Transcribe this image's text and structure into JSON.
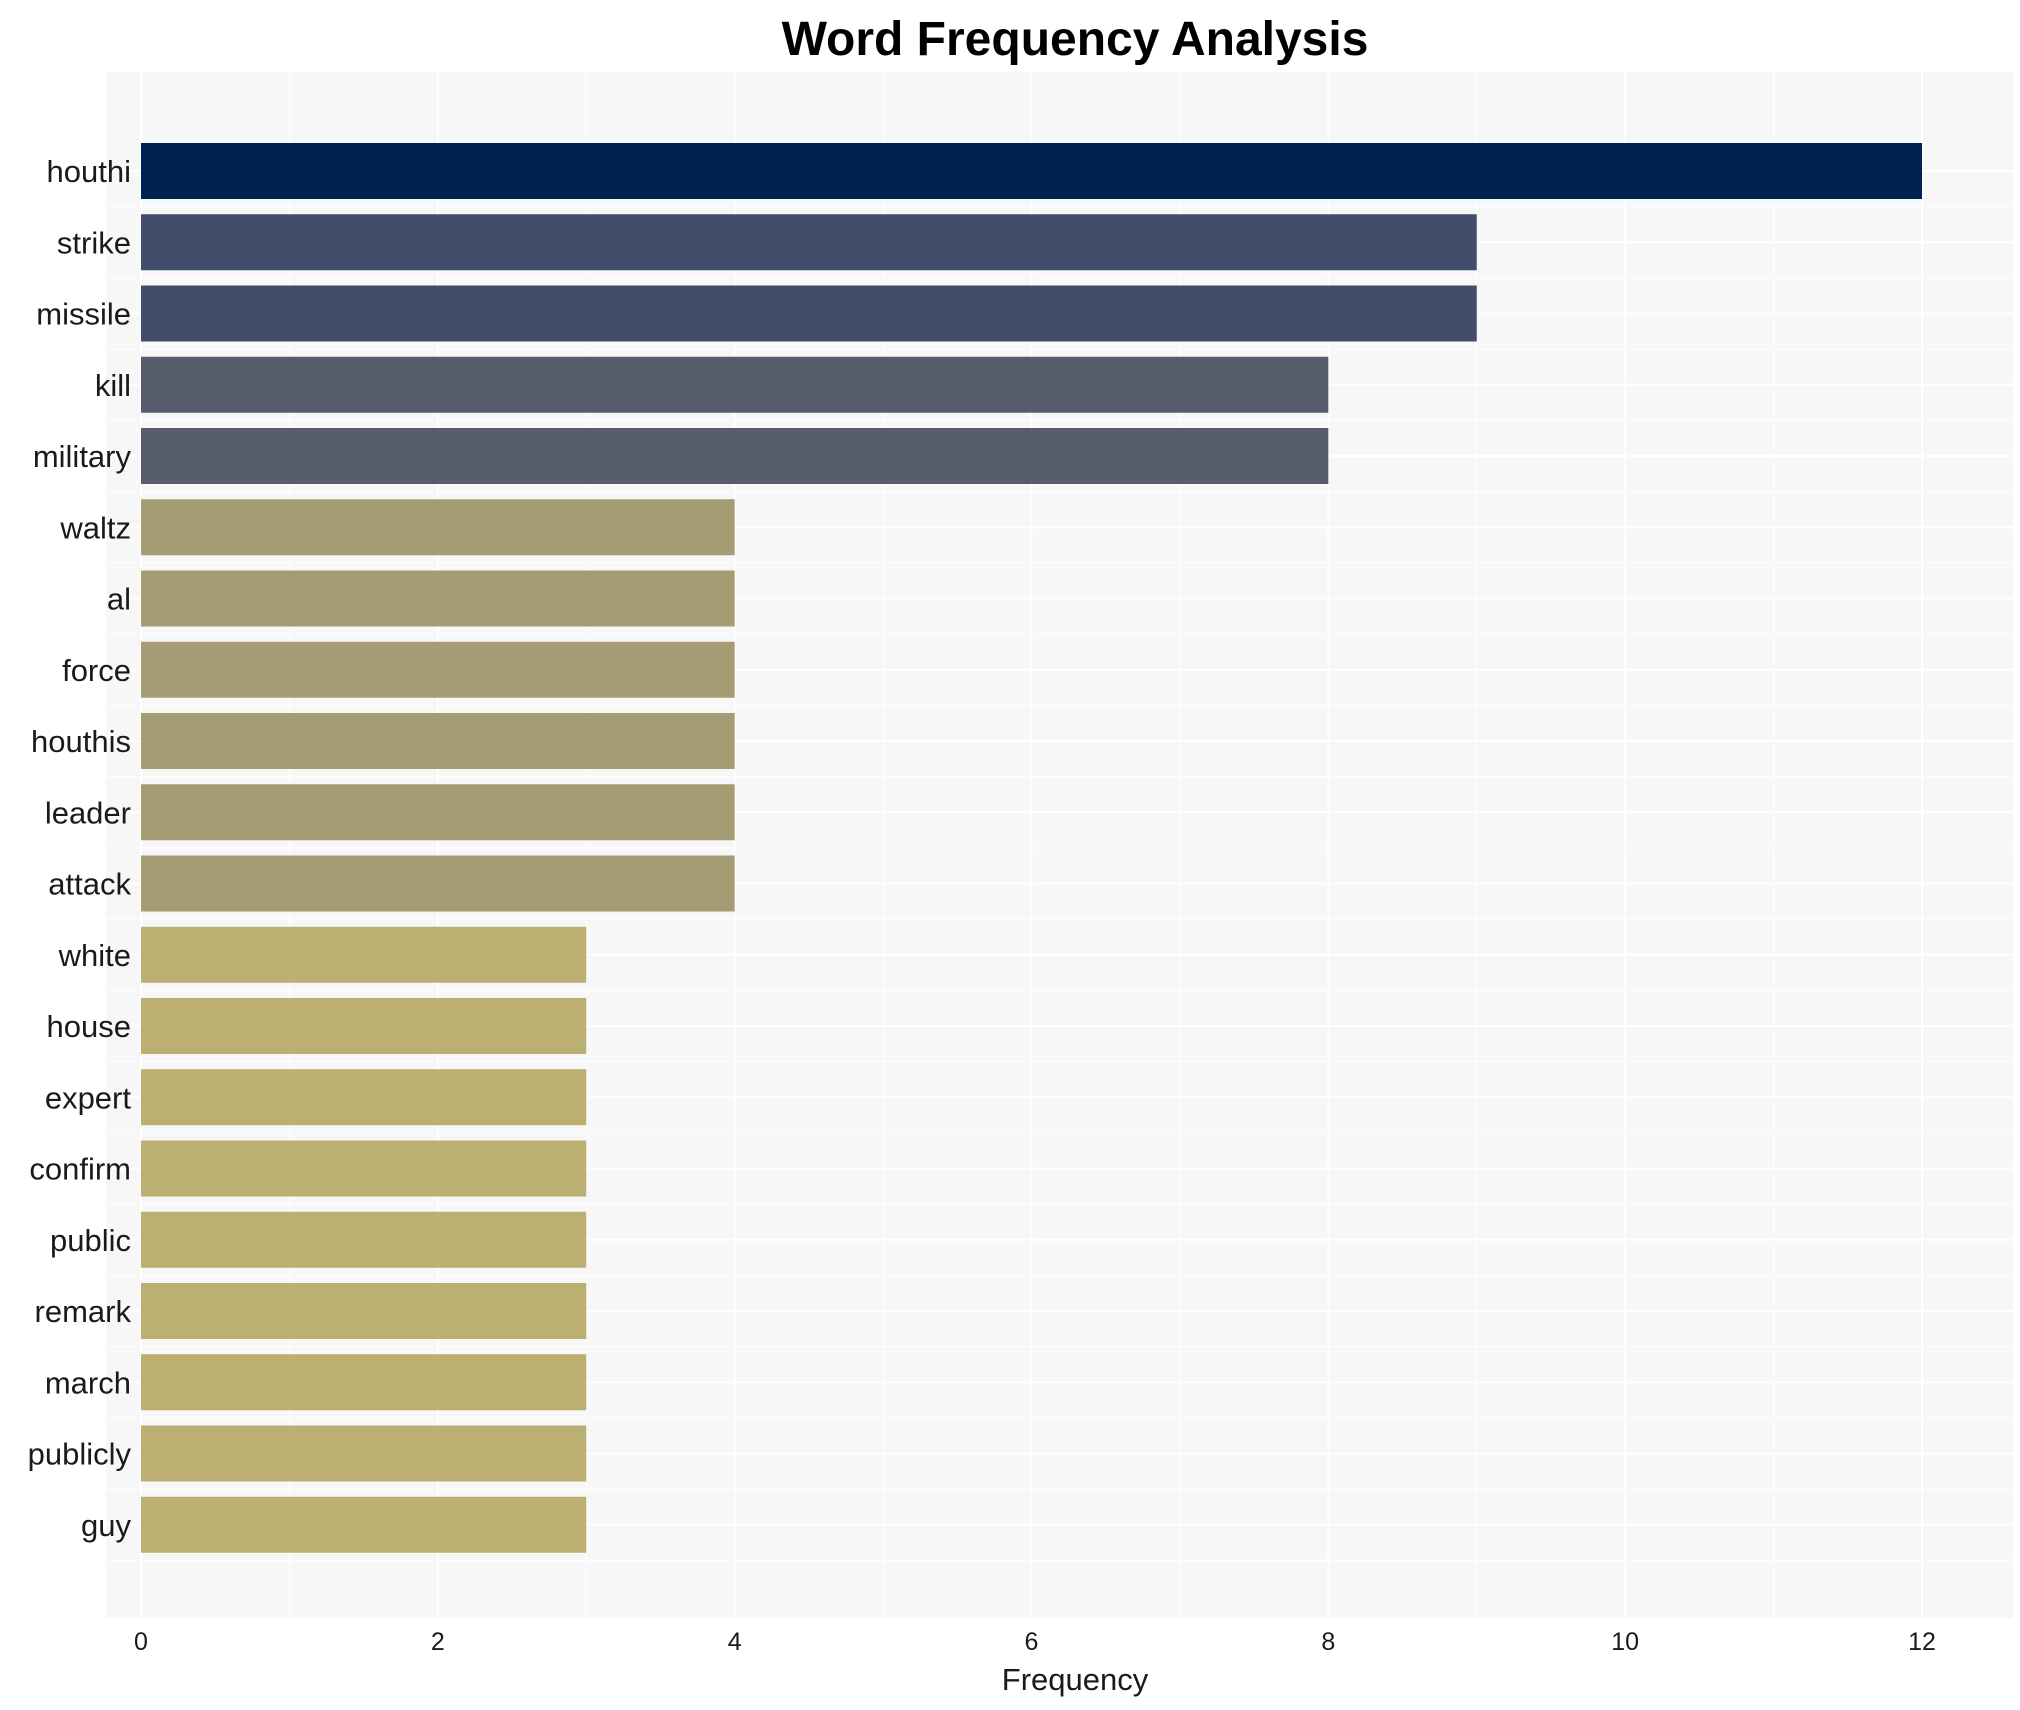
{
  "chart_data": {
    "type": "bar",
    "orientation": "horizontal",
    "title": "Word Frequency Analysis",
    "xlabel": "Frequency",
    "ylabel": "",
    "xlim": [
      0,
      12.6
    ],
    "xticks": [
      0,
      2,
      4,
      6,
      8,
      10,
      12
    ],
    "grid": true,
    "categories": [
      "houthi",
      "strike",
      "missile",
      "kill",
      "military",
      "waltz",
      "al",
      "force",
      "houthis",
      "leader",
      "attack",
      "white",
      "house",
      "expert",
      "confirm",
      "public",
      "remark",
      "march",
      "publicly",
      "guy"
    ],
    "values": [
      12,
      9,
      9,
      8,
      8,
      4,
      4,
      4,
      4,
      4,
      4,
      3,
      3,
      3,
      3,
      3,
      3,
      3,
      3,
      3
    ],
    "colors": {
      "12": "#00224e",
      "9": "#414d6b",
      "8": "#575c6d",
      "4": "#a59c74",
      "3": "#bbaf71"
    },
    "background": "#f7f7f7",
    "gridline_color": "#ffffff"
  }
}
